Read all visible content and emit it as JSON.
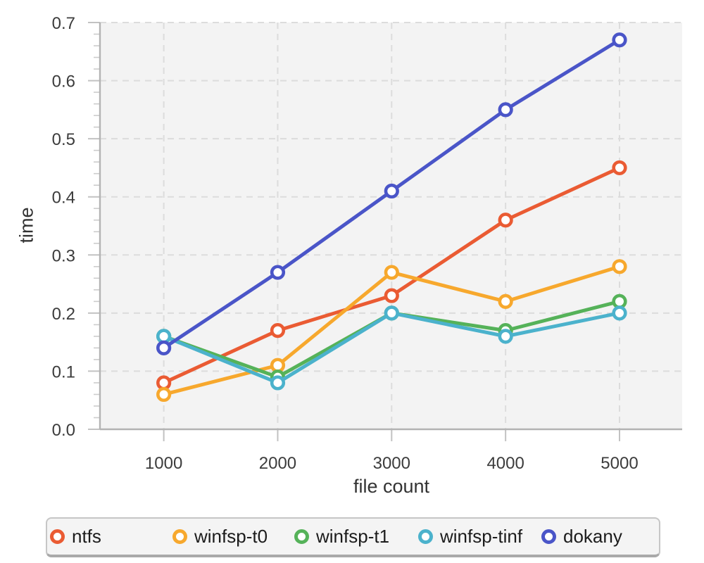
{
  "chart_data": {
    "type": "line",
    "title": "",
    "xlabel": "file count",
    "ylabel": "time",
    "x": [
      1000,
      2000,
      3000,
      4000,
      5000
    ],
    "series": [
      {
        "name": "ntfs",
        "color": "#EA5B33",
        "values": [
          0.08,
          0.17,
          0.23,
          0.36,
          0.45
        ]
      },
      {
        "name": "winfsp-t0",
        "color": "#F7A82D",
        "values": [
          0.06,
          0.11,
          0.27,
          0.22,
          0.28
        ]
      },
      {
        "name": "winfsp-t1",
        "color": "#55B259",
        "values": [
          0.16,
          0.09,
          0.2,
          0.17,
          0.22
        ]
      },
      {
        "name": "winfsp-tinf",
        "color": "#4BB2CC",
        "values": [
          0.16,
          0.08,
          0.2,
          0.16,
          0.2
        ]
      },
      {
        "name": "dokany",
        "color": "#4A55C8",
        "values": [
          0.14,
          0.27,
          0.41,
          0.55,
          0.67
        ]
      }
    ],
    "xlim": [
      440,
      5550
    ],
    "ylim": [
      0.0,
      0.7
    ],
    "xticks": [
      1000,
      2000,
      3000,
      4000,
      5000
    ],
    "yticks": [
      0.0,
      0.1,
      0.2,
      0.3,
      0.4,
      0.5,
      0.6,
      0.7
    ],
    "y_minor_step": 0.02,
    "grid": "dashed",
    "legend_position": "bottom",
    "marker": "open-circle",
    "panel_bg": "#f3f3f3",
    "grid_color": "#dcdcdc",
    "axis_color": "#b3b3b3",
    "tick_color": "#c2c2c2",
    "minor_tick_color": "#cccccc",
    "tick_label_color": "#3c3c3c",
    "axis_label_color": "#333333",
    "legend_text_color": "#1c1c1c"
  }
}
